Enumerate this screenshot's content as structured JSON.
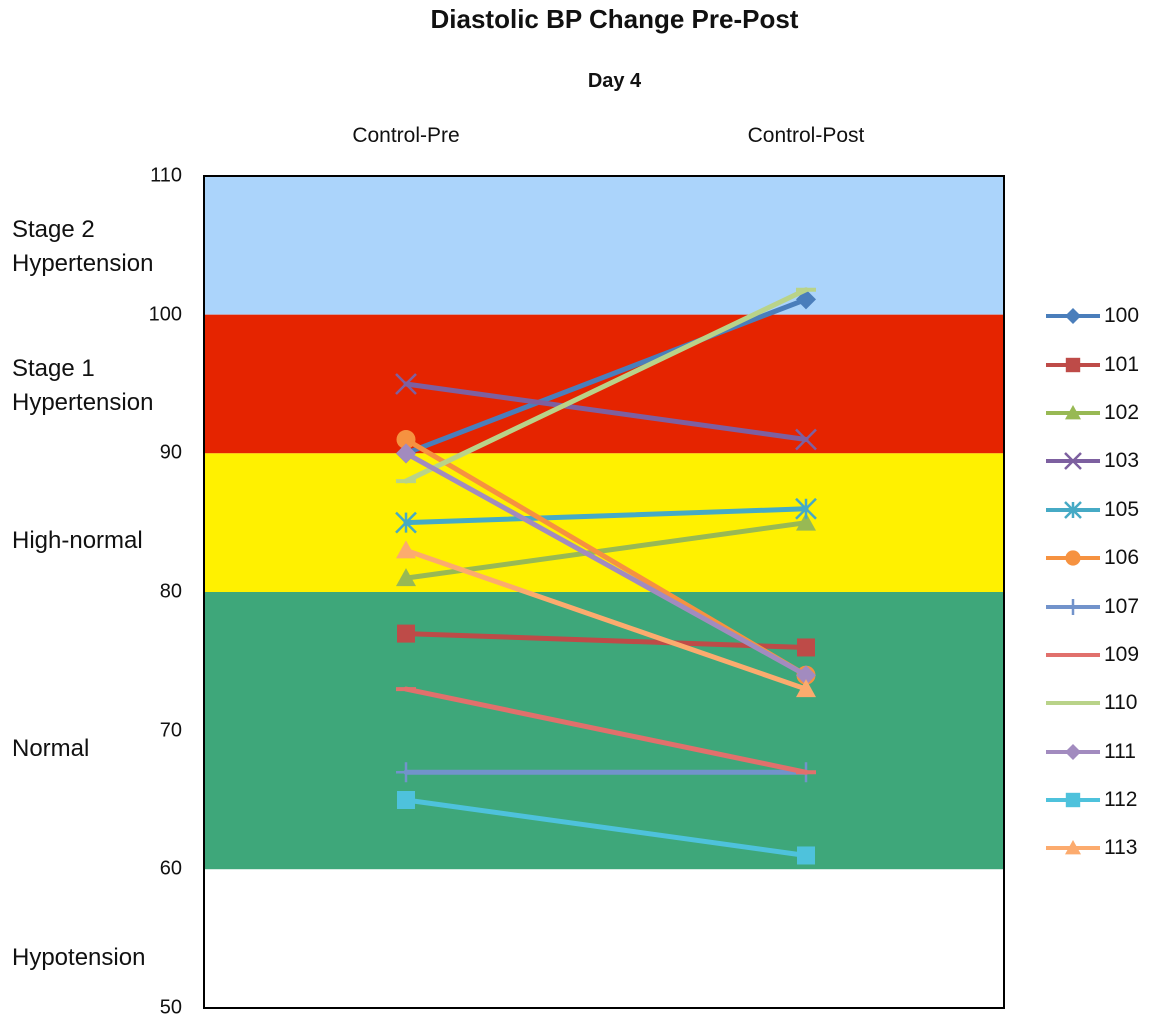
{
  "chart_data": {
    "type": "line",
    "title": "Diastolic BP Change Pre-Post",
    "subtitle": "Day 4",
    "categories": [
      "Control-Pre",
      "Control-Post"
    ],
    "ylim": [
      50,
      110
    ],
    "yticks": [
      50,
      60,
      70,
      80,
      90,
      100,
      110
    ],
    "grid": false,
    "legend": "right",
    "bands": [
      {
        "label": "Stage 2\nHypertension",
        "from": 100,
        "to": 110,
        "color": "#abd4fb"
      },
      {
        "label": "Stage 1\nHypertension",
        "from": 90,
        "to": 100,
        "color": "#e52400"
      },
      {
        "label": "High-normal",
        "from": 80,
        "to": 90,
        "color": "#fff100"
      },
      {
        "label": "Normal",
        "from": 60,
        "to": 80,
        "color": "#3ea77a"
      },
      {
        "label": "Hypotension",
        "from": 50,
        "to": 60,
        "color": "#ffffff"
      }
    ],
    "series": [
      {
        "name": "100",
        "values": [
          90,
          101.1
        ],
        "color": "#4a7ebb",
        "marker": "diamond"
      },
      {
        "name": "101",
        "values": [
          77,
          76
        ],
        "color": "#be4b48",
        "marker": "square"
      },
      {
        "name": "102",
        "values": [
          81,
          85
        ],
        "color": "#98b954",
        "marker": "triangle"
      },
      {
        "name": "103",
        "values": [
          95,
          91
        ],
        "color": "#7d60a0",
        "marker": "x"
      },
      {
        "name": "105",
        "values": [
          85,
          86
        ],
        "color": "#46aac5",
        "marker": "star"
      },
      {
        "name": "106",
        "values": [
          91,
          74
        ],
        "color": "#f69240",
        "marker": "circle"
      },
      {
        "name": "107",
        "values": [
          67,
          67
        ],
        "color": "#7293cb",
        "marker": "plus"
      },
      {
        "name": "109",
        "values": [
          73,
          67
        ],
        "color": "#e1706c",
        "marker": "dash"
      },
      {
        "name": "110",
        "values": [
          88,
          101.8
        ],
        "color": "#b9d389",
        "marker": "dash"
      },
      {
        "name": "111",
        "values": [
          90,
          74
        ],
        "color": "#a28bbf",
        "marker": "diamond"
      },
      {
        "name": "112",
        "values": [
          65,
          61
        ],
        "color": "#4ec2dc",
        "marker": "square"
      },
      {
        "name": "113",
        "values": [
          83,
          73
        ],
        "color": "#fcab6e",
        "marker": "triangle"
      }
    ]
  }
}
